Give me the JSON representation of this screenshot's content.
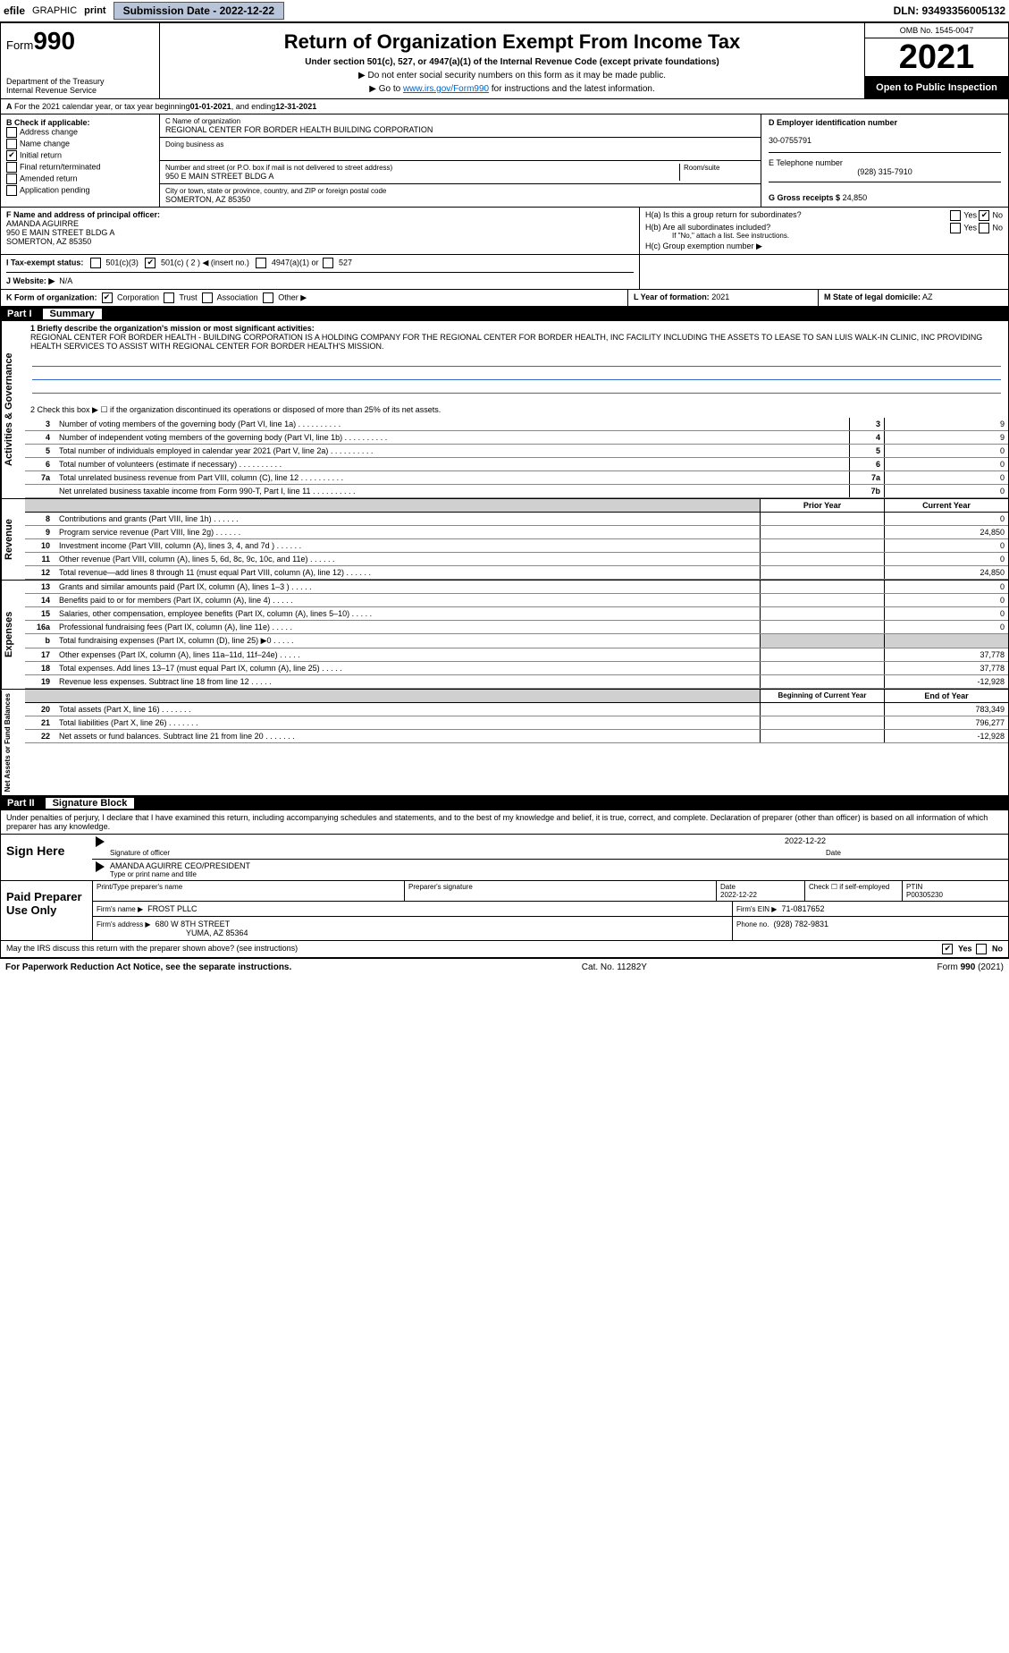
{
  "topbar": {
    "efile": "efile",
    "graphic": "GRAPHIC",
    "print": "print",
    "subdate_label": "Submission Date - 2022-12-22",
    "dln": "DLN: 93493356005132"
  },
  "header": {
    "form_prefix": "Form",
    "form_num": "990",
    "dept": "Department of the Treasury",
    "irs": "Internal Revenue Service",
    "title": "Return of Organization Exempt From Income Tax",
    "sub1": "Under section 501(c), 527, or 4947(a)(1) of the Internal Revenue Code (except private foundations)",
    "sub2": "▶ Do not enter social security numbers on this form as it may be made public.",
    "sub3_pre": "▶ Go to ",
    "sub3_link": "www.irs.gov/Form990",
    "sub3_post": " for instructions and the latest information.",
    "omb": "OMB No. 1545-0047",
    "year": "2021",
    "open": "Open to Public Inspection"
  },
  "section_a": {
    "text_pre": "For the 2021 calendar year, or tax year beginning ",
    "begin": "01-01-2021",
    "mid": " , and ending ",
    "end": "12-31-2021"
  },
  "check_b": {
    "label": "B Check if applicable:",
    "items": [
      "Address change",
      "Name change",
      "Initial return",
      "Final return/terminated",
      "Amended return",
      "Application pending"
    ],
    "checked_idx": 2
  },
  "section_c": {
    "label": "C Name of organization",
    "name": "REGIONAL CENTER FOR BORDER HEALTH BUILDING CORPORATION",
    "dba_label": "Doing business as",
    "addr_label": "Number and street (or P.O. box if mail is not delivered to street address)",
    "room_label": "Room/suite",
    "addr": "950 E MAIN STREET BLDG A",
    "city_label": "City or town, state or province, country, and ZIP or foreign postal code",
    "city": "SOMERTON, AZ  85350"
  },
  "section_d": {
    "label": "D Employer identification number",
    "ein": "30-0755791"
  },
  "section_e": {
    "label": "E Telephone number",
    "phone": "(928) 315-7910"
  },
  "section_g": {
    "label": "G Gross receipts $",
    "val": "24,850"
  },
  "section_f": {
    "label": "F Name and address of principal officer:",
    "name": "AMANDA AGUIRRE",
    "addr1": "950 E MAIN STREET BLDG A",
    "addr2": "SOMERTON, AZ  85350"
  },
  "section_h": {
    "ha": "H(a)  Is this a group return for subordinates?",
    "hb": "H(b)  Are all subordinates included?",
    "hb_note": "If \"No,\" attach a list. See instructions.",
    "hc": "H(c)  Group exemption number ▶",
    "yes": "Yes",
    "no": "No"
  },
  "section_i": {
    "label": "I  Tax-exempt status:",
    "c3": "501(c)(3)",
    "c_other": "501(c) ( 2 ) ◀ (insert no.)",
    "a1": "4947(a)(1) or",
    "s527": "527"
  },
  "section_j": {
    "label": "J  Website: ▶",
    "val": "N/A"
  },
  "section_k": {
    "label": "K Form of organization:",
    "corp": "Corporation",
    "trust": "Trust",
    "assoc": "Association",
    "other": "Other ▶"
  },
  "section_l": {
    "label": "L Year of formation:",
    "val": "2021"
  },
  "section_m": {
    "label": "M State of legal domicile:",
    "val": "AZ"
  },
  "part1": {
    "label": "Part I",
    "title": "Summary",
    "line1_label": "1  Briefly describe the organization's mission or most significant activities:",
    "line1_text": "REGIONAL CENTER FOR BORDER HEALTH - BUILDING CORPORATION IS A HOLDING COMPANY FOR THE REGIONAL CENTER FOR BORDER HEALTH, INC FACILITY INCLUDING THE ASSETS TO LEASE TO SAN LUIS WALK-IN CLINIC, INC PROVIDING HEALTH SERVICES TO ASSIST WITH REGIONAL CENTER FOR BORDER HEALTH'S MISSION.",
    "line2": "2   Check this box ▶ ☐  if the organization discontinued its operations or disposed of more than 25% of its net assets.",
    "gov_rows": [
      {
        "n": "3",
        "t": "Number of voting members of the governing body (Part VI, line 1a)",
        "box": "3",
        "v": "9"
      },
      {
        "n": "4",
        "t": "Number of independent voting members of the governing body (Part VI, line 1b)",
        "box": "4",
        "v": "9"
      },
      {
        "n": "5",
        "t": "Total number of individuals employed in calendar year 2021 (Part V, line 2a)",
        "box": "5",
        "v": "0"
      },
      {
        "n": "6",
        "t": "Total number of volunteers (estimate if necessary)",
        "box": "6",
        "v": "0"
      },
      {
        "n": "7a",
        "t": "Total unrelated business revenue from Part VIII, column (C), line 12",
        "box": "7a",
        "v": "0"
      },
      {
        "n": "",
        "t": "Net unrelated business taxable income from Form 990-T, Part I, line 11",
        "box": "7b",
        "v": "0"
      }
    ],
    "prior_hdr": "Prior Year",
    "curr_hdr": "Current Year",
    "rev_rows": [
      {
        "n": "8",
        "t": "Contributions and grants (Part VIII, line 1h)",
        "p": "",
        "c": "0"
      },
      {
        "n": "9",
        "t": "Program service revenue (Part VIII, line 2g)",
        "p": "",
        "c": "24,850"
      },
      {
        "n": "10",
        "t": "Investment income (Part VIII, column (A), lines 3, 4, and 7d )",
        "p": "",
        "c": "0"
      },
      {
        "n": "11",
        "t": "Other revenue (Part VIII, column (A), lines 5, 6d, 8c, 9c, 10c, and 11e)",
        "p": "",
        "c": "0"
      },
      {
        "n": "12",
        "t": "Total revenue—add lines 8 through 11 (must equal Part VIII, column (A), line 12)",
        "p": "",
        "c": "24,850"
      }
    ],
    "exp_rows": [
      {
        "n": "13",
        "t": "Grants and similar amounts paid (Part IX, column (A), lines 1–3 )",
        "p": "",
        "c": "0"
      },
      {
        "n": "14",
        "t": "Benefits paid to or for members (Part IX, column (A), line 4)",
        "p": "",
        "c": "0"
      },
      {
        "n": "15",
        "t": "Salaries, other compensation, employee benefits (Part IX, column (A), lines 5–10)",
        "p": "",
        "c": "0"
      },
      {
        "n": "16a",
        "t": "Professional fundraising fees (Part IX, column (A), line 11e)",
        "p": "",
        "c": "0"
      },
      {
        "n": "b",
        "t": "Total fundraising expenses (Part IX, column (D), line 25) ▶0",
        "p": "shade",
        "c": "shade"
      },
      {
        "n": "17",
        "t": "Other expenses (Part IX, column (A), lines 11a–11d, 11f–24e)",
        "p": "",
        "c": "37,778"
      },
      {
        "n": "18",
        "t": "Total expenses. Add lines 13–17 (must equal Part IX, column (A), line 25)",
        "p": "",
        "c": "37,778"
      },
      {
        "n": "19",
        "t": "Revenue less expenses. Subtract line 18 from line 12",
        "p": "",
        "c": "-12,928"
      }
    ],
    "bal_hdr1": "Beginning of Current Year",
    "bal_hdr2": "End of Year",
    "bal_rows": [
      {
        "n": "20",
        "t": "Total assets (Part X, line 16)",
        "p": "",
        "c": "783,349"
      },
      {
        "n": "21",
        "t": "Total liabilities (Part X, line 26)",
        "p": "",
        "c": "796,277"
      },
      {
        "n": "22",
        "t": "Net assets or fund balances. Subtract line 21 from line 20",
        "p": "",
        "c": "-12,928"
      }
    ],
    "vert_gov": "Activities & Governance",
    "vert_rev": "Revenue",
    "vert_exp": "Expenses",
    "vert_bal": "Net Assets or Fund Balances"
  },
  "part2": {
    "label": "Part II",
    "title": "Signature Block",
    "decl": "Under penalties of perjury, I declare that I have examined this return, including accompanying schedules and statements, and to the best of my knowledge and belief, it is true, correct, and complete. Declaration of preparer (other than officer) is based on all information of which preparer has any knowledge.",
    "sign_here": "Sign Here",
    "sig_officer": "Signature of officer",
    "sig_date": "2022-12-22",
    "date_label": "Date",
    "name_title": "AMANDA AGUIRRE CEO/PRESIDENT",
    "type_label": "Type or print name and title",
    "paid": "Paid Preparer Use Only",
    "prep_name_label": "Print/Type preparer's name",
    "prep_sig_label": "Preparer's signature",
    "prep_date_label": "Date",
    "prep_date": "2022-12-22",
    "self_emp": "Check ☐ if self-employed",
    "ptin_label": "PTIN",
    "ptin": "P00305230",
    "firm_name_label": "Firm's name    ▶",
    "firm_name": "FROST PLLC",
    "firm_ein_label": "Firm's EIN ▶",
    "firm_ein": "71-0817652",
    "firm_addr_label": "Firm's address ▶",
    "firm_addr": "680 W 8TH STREET",
    "firm_city": "YUMA, AZ  85364",
    "firm_phone_label": "Phone no.",
    "firm_phone": "(928) 782-9831",
    "may_irs": "May the IRS discuss this return with the preparer shown above? (see instructions)",
    "yes": "Yes",
    "no": "No"
  },
  "footer": {
    "pra": "For Paperwork Reduction Act Notice, see the separate instructions.",
    "cat": "Cat. No. 11282Y",
    "form": "Form 990 (2021)"
  }
}
